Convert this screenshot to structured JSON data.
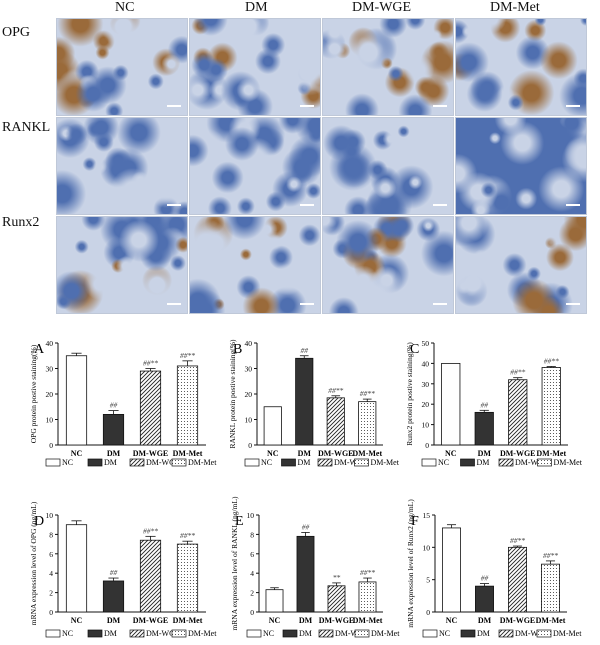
{
  "ihc": {
    "groups": [
      "NC",
      "DM",
      "DM-WGE",
      "DM-Met"
    ],
    "markers": [
      "OPG",
      "RANKL",
      "Runx2"
    ]
  },
  "palette": {
    "stain_blue": "#4f6fb0",
    "stain_light": "#c9d3e6",
    "stain_brown": "#9a6a3a",
    "bar_dark": "#333333"
  },
  "legend_labels": [
    "NC",
    "DM",
    "DM-WGE",
    "DM-Met"
  ],
  "chart_data": [
    {
      "panel": "A",
      "type": "bar",
      "ylabel": "OPG protein postive staining(%)",
      "ylim": [
        0,
        40
      ],
      "yticks": [
        0,
        10,
        20,
        30,
        40
      ],
      "categories": [
        "NC",
        "DM",
        "DM-WGE",
        "DM-Met"
      ],
      "values": [
        35,
        12,
        29,
        31
      ],
      "errors": [
        1,
        1.5,
        1,
        2
      ],
      "annotations": [
        "",
        "##",
        "##**",
        "##**"
      ]
    },
    {
      "panel": "B",
      "type": "bar",
      "ylabel": "RANKL protein postive staining(%)",
      "ylim": [
        0,
        40
      ],
      "yticks": [
        0,
        10,
        20,
        30,
        40
      ],
      "categories": [
        "NC",
        "DM",
        "DM-WGE",
        "DM-Met"
      ],
      "values": [
        15,
        34,
        18.5,
        17
      ],
      "errors": [
        0,
        1,
        0.8,
        1
      ],
      "annotations": [
        "",
        "##",
        "##**",
        "##**"
      ]
    },
    {
      "panel": "C",
      "type": "bar",
      "ylabel": "Runx2 protein postive staining(%)",
      "ylim": [
        0,
        50
      ],
      "yticks": [
        0,
        10,
        20,
        30,
        40,
        50
      ],
      "categories": [
        "NC",
        "DM",
        "DM-WGE",
        "DM-Met"
      ],
      "values": [
        40,
        16,
        32,
        38
      ],
      "errors": [
        0,
        1,
        1,
        0.5
      ],
      "annotations": [
        "",
        "##",
        "##**",
        "##**"
      ]
    },
    {
      "panel": "D",
      "type": "bar",
      "ylabel": "mRNA expression level of OPG (ng/mL)",
      "ylim": [
        0,
        10
      ],
      "yticks": [
        0,
        2,
        4,
        6,
        8,
        10
      ],
      "categories": [
        "NC",
        "DM",
        "DM-WGE",
        "DM-Met"
      ],
      "values": [
        9,
        3.2,
        7.4,
        7
      ],
      "errors": [
        0.4,
        0.3,
        0.4,
        0.3
      ],
      "annotations": [
        "",
        "##",
        "##**",
        "##**"
      ]
    },
    {
      "panel": "E",
      "type": "bar",
      "ylabel": "mRNA expression level of RANKL (ng/mL)",
      "ylim": [
        0,
        10
      ],
      "yticks": [
        0,
        2,
        4,
        6,
        8,
        10
      ],
      "categories": [
        "NC",
        "DM",
        "DM-WGE",
        "DM-Met"
      ],
      "values": [
        2.3,
        7.8,
        2.7,
        3.1
      ],
      "errors": [
        0.2,
        0.4,
        0.3,
        0.4
      ],
      "annotations": [
        "",
        "##",
        "**",
        "##**"
      ]
    },
    {
      "panel": "F",
      "type": "bar",
      "ylabel": "mRNA expression level of Runx2 (ng/mL)",
      "ylim": [
        0,
        15
      ],
      "yticks": [
        0,
        5,
        10,
        15
      ],
      "categories": [
        "NC",
        "DM",
        "DM-WGE",
        "DM-Met"
      ],
      "values": [
        13,
        4,
        10,
        7.4
      ],
      "errors": [
        0.5,
        0.4,
        0.2,
        0.5
      ],
      "annotations": [
        "",
        "##",
        "##**",
        "##**"
      ]
    }
  ]
}
